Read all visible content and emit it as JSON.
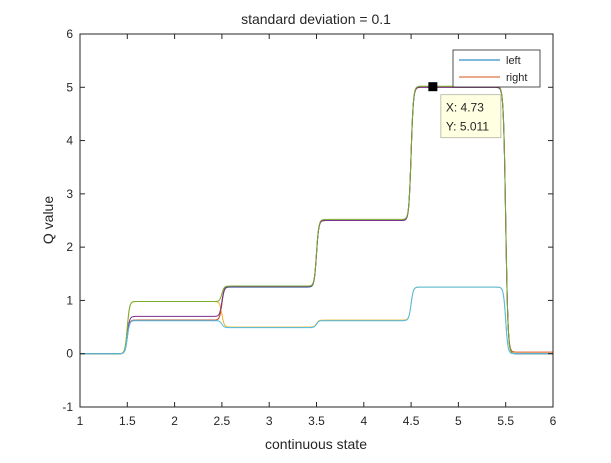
{
  "chart_data": {
    "type": "line",
    "title": "standard deviation = 0.1",
    "xlabel": "continuous state",
    "ylabel": "Q value",
    "xlim": [
      1,
      6
    ],
    "ylim": [
      -1,
      6
    ],
    "x_ticks": [
      1,
      1.5,
      2,
      2.5,
      3,
      3.5,
      4,
      4.5,
      5,
      5.5,
      6
    ],
    "x_tick_labels": [
      "1",
      "1.5",
      "2",
      "2.5",
      "3",
      "3.5",
      "4",
      "4.5",
      "5",
      "5.5",
      "6"
    ],
    "y_ticks": [
      -1,
      0,
      1,
      2,
      3,
      4,
      5,
      6
    ],
    "y_tick_labels": [
      "-1",
      "0",
      "1",
      "2",
      "3",
      "4",
      "5",
      "6"
    ],
    "grid": false,
    "legend_position": "top-right",
    "series": [
      {
        "name": "left",
        "color": "#0072bd",
        "x": [
          1,
          1.5,
          2.5,
          3.5,
          4.5,
          5.5,
          6
        ],
        "y": [
          0,
          0.63,
          1.25,
          2.5,
          5.0,
          0,
          0
        ]
      },
      {
        "name": "right",
        "color": "#d95319",
        "x": [
          1,
          1.5,
          2.5,
          3.5,
          4.5,
          5.5,
          6
        ],
        "y": [
          0,
          0.63,
          1.26,
          2.5,
          5.0,
          0.03,
          0.03
        ]
      },
      {
        "color": "#edb120",
        "x": [
          1,
          1.5,
          2.5,
          3.5,
          4.5,
          5.5,
          6
        ],
        "y": [
          0,
          0.98,
          0.5,
          0.63,
          1.25,
          0,
          0
        ]
      },
      {
        "color": "#7e2f8e",
        "x": [
          1,
          1.5,
          2.5,
          3.5,
          4.5,
          5.5,
          6
        ],
        "y": [
          0,
          0.7,
          1.26,
          2.5,
          5.0,
          0,
          0
        ]
      },
      {
        "color": "#77ac30",
        "x": [
          1,
          1.5,
          2.5,
          3.5,
          4.5,
          5.5,
          6
        ],
        "y": [
          0,
          0.98,
          1.27,
          2.52,
          5.02,
          0,
          0
        ]
      },
      {
        "color": "#4dbeee",
        "x": [
          1,
          1.5,
          2.5,
          3.5,
          4.5,
          5.5,
          6
        ],
        "y": [
          0,
          0.62,
          0.49,
          0.62,
          1.25,
          0,
          0
        ]
      }
    ],
    "datatip": {
      "x": 4.73,
      "y": 5.011,
      "x_text": "X: 4.73",
      "y_text": "Y: 5.011"
    }
  }
}
